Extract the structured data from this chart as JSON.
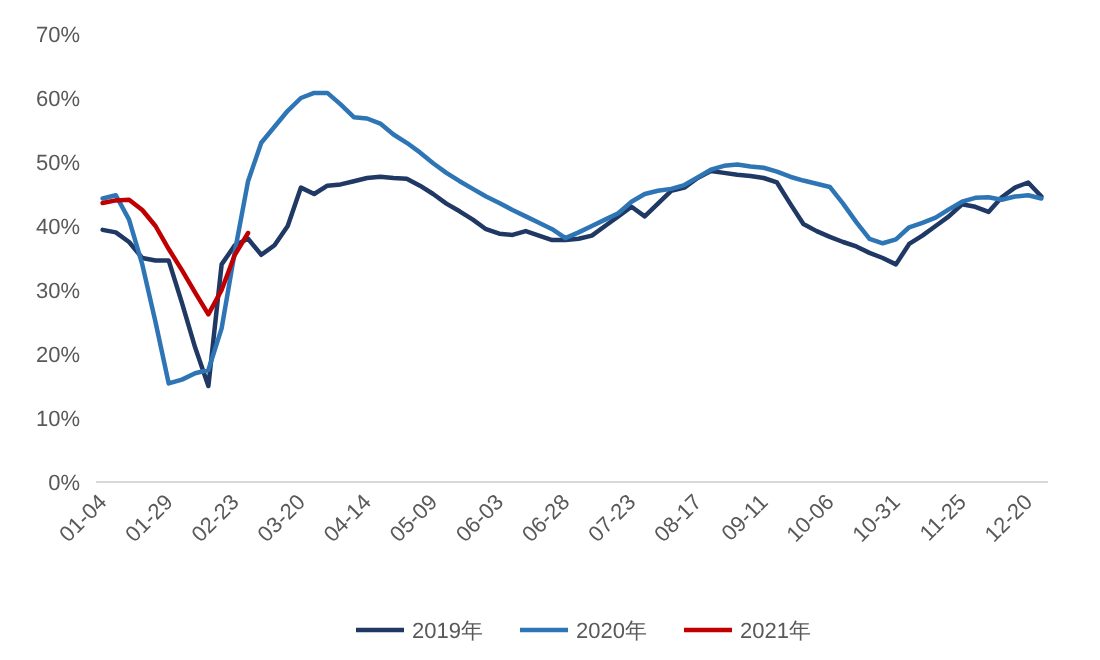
{
  "chart_data": {
    "type": "line",
    "categories": [
      "01-04",
      null,
      null,
      null,
      null,
      "01-29",
      null,
      null,
      null,
      null,
      "02-23",
      null,
      null,
      null,
      null,
      "03-20",
      null,
      null,
      null,
      null,
      "04-14",
      null,
      null,
      null,
      null,
      "05-09",
      null,
      null,
      null,
      null,
      "06-03",
      null,
      null,
      null,
      null,
      "06-28",
      null,
      null,
      null,
      null,
      "07-23",
      null,
      null,
      null,
      null,
      "08-17",
      null,
      null,
      null,
      null,
      "09-11",
      null,
      null,
      null,
      null,
      "10-06",
      null,
      null,
      null,
      null,
      "10-31",
      null,
      null,
      null,
      null,
      "11-25",
      null,
      null,
      null,
      null,
      "12-20",
      null
    ],
    "series": [
      {
        "name": "2019年",
        "color": "#1f3864",
        "values": [
          39.4,
          39,
          37.5,
          35,
          34.6,
          34.6,
          28,
          21,
          15,
          34,
          37,
          38,
          35.5,
          37,
          40,
          46,
          45,
          46.3,
          46.5,
          47,
          47.5,
          47.7,
          47.5,
          47.4,
          46.3,
          45,
          43.5,
          42.3,
          41,
          39.5,
          38.8,
          38.6,
          39.2,
          38.5,
          37.8,
          37.8,
          38,
          38.5,
          40,
          41.5,
          43,
          41.5,
          43.5,
          45.5,
          46,
          47.5,
          48.6,
          48.3,
          48,
          47.8,
          47.5,
          46.8,
          43.5,
          40.3,
          39.2,
          38.3,
          37.5,
          36.8,
          35.8,
          35,
          34,
          37.2,
          38.5,
          40,
          41.5,
          43.4,
          43,
          42.2,
          44.5,
          46,
          46.8,
          44.6
        ]
      },
      {
        "name": "2020年",
        "color": "#2e75b6",
        "values": [
          44.3,
          44.8,
          41,
          34,
          25,
          15.4,
          16,
          17,
          17.5,
          24,
          36,
          47,
          53,
          55.5,
          58,
          60,
          60.8,
          60.8,
          59,
          57,
          56.8,
          56,
          54.3,
          53,
          51.5,
          49.8,
          48.3,
          47,
          45.8,
          44.6,
          43.6,
          42.5,
          41.5,
          40.5,
          39.5,
          38.1,
          39,
          40,
          41,
          42,
          43.8,
          45,
          45.5,
          45.8,
          46.4,
          47.6,
          48.8,
          49.4,
          49.6,
          49.3,
          49.1,
          48.5,
          47.7,
          47.1,
          46.6,
          46.1,
          43.5,
          40.6,
          38,
          37.3,
          37.9,
          39.8,
          40.5,
          41.3,
          42.6,
          43.8,
          44.4,
          44.5,
          44.1,
          44.6,
          44.8,
          44.3
        ]
      },
      {
        "name": "2021年",
        "color": "#c00000",
        "values": [
          43.6,
          44,
          44.1,
          42.5,
          40,
          36.4,
          33.1,
          29.6,
          26.2,
          30,
          35.5,
          38.9,
          null,
          null,
          null,
          null,
          null,
          null,
          null,
          null,
          null,
          null,
          null,
          null,
          null,
          null,
          null,
          null,
          null,
          null,
          null,
          null,
          null,
          null,
          null,
          null,
          null,
          null,
          null,
          null,
          null,
          null,
          null,
          null,
          null,
          null,
          null,
          null,
          null,
          null,
          null,
          null,
          null,
          null,
          null,
          null,
          null,
          null,
          null,
          null,
          null,
          null,
          null,
          null,
          null,
          null,
          null,
          null,
          null,
          null,
          null,
          null
        ]
      }
    ],
    "ylim": [
      0,
      70
    ],
    "yticks": [
      {
        "value": 0,
        "label": "0%"
      },
      {
        "value": 10,
        "label": "10%"
      },
      {
        "value": 20,
        "label": "20%"
      },
      {
        "value": 30,
        "label": "30%"
      },
      {
        "value": 40,
        "label": "40%"
      },
      {
        "value": 50,
        "label": "50%"
      },
      {
        "value": 60,
        "label": "60%"
      },
      {
        "value": 70,
        "label": "70%"
      }
    ],
    "grid": false,
    "legend": "bottom"
  }
}
